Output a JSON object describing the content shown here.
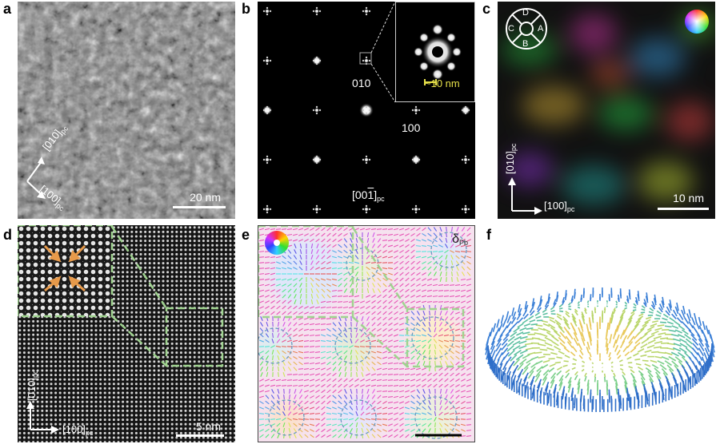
{
  "panels": [
    {
      "label": "a"
    },
    {
      "label": "b"
    },
    {
      "label": "c"
    },
    {
      "label": "d"
    },
    {
      "label": "e"
    },
    {
      "label": "f"
    }
  ],
  "a": {
    "dir_top": "[010]",
    "dir_bottom": "[100]",
    "dir_sub": "pc",
    "scalebar": "20 nm"
  },
  "b": {
    "spot_010": "010",
    "spot_100": "100",
    "inset_scale": "~10 nm",
    "zone_axis": "[00",
    "zone_axis_digit": "1",
    "zone_axis_close": "]",
    "zone_sub": "pc"
  },
  "c": {
    "dir_top": "[010]",
    "dir_right": "[100]",
    "dir_sub": "pc",
    "scalebar": "10 nm",
    "wheel_labels": [
      "D",
      "A",
      "B",
      "C"
    ]
  },
  "d": {
    "dir_top": "[010]",
    "dir_right": "[100]",
    "dir_sub": "pc",
    "scalebar": "5 nm"
  },
  "e": {
    "symbol": "δ",
    "symbol_sub": "Pb"
  },
  "colors": {
    "accent_green": "#9fd38f",
    "scale_yellow": "#e6e04a",
    "e_background": "#f6e2ef"
  }
}
